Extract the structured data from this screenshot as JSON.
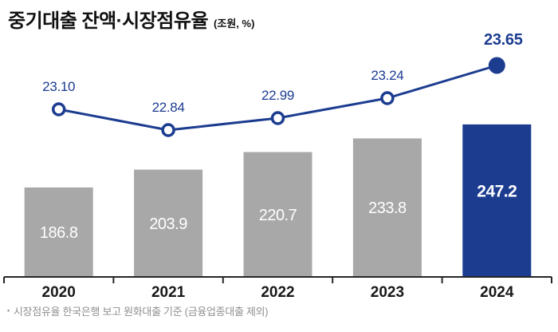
{
  "title": {
    "text": "중기대출 잔액·시장점유율",
    "unit": "(조원, %)"
  },
  "footnote": {
    "bullet": "▪",
    "text": "시장점유율 한국은행 보고 원화대출 기준 (금융업종대출 제외)"
  },
  "colors": {
    "navy": "#1c3c90",
    "gray_bar": "#a8a8a8",
    "bar_label": "#ffffff",
    "axis": "#262626",
    "year_label": "#191919",
    "footnote_gray": "#909090"
  },
  "chart_data": {
    "type": "bar+line combo",
    "categories": [
      "2020",
      "2021",
      "2022",
      "2023",
      "2024"
    ],
    "series": [
      {
        "name": "중기대출 잔액 (조원)",
        "type": "bar",
        "values": [
          186.8,
          203.9,
          220.7,
          233.8,
          247.2
        ],
        "labels": [
          "186.8",
          "203.9",
          "220.7",
          "233.8",
          "247.2"
        ]
      },
      {
        "name": "시장점유율 (%)",
        "type": "line",
        "values": [
          23.1,
          22.84,
          22.99,
          23.24,
          23.65
        ],
        "labels": [
          "23.10",
          "22.84",
          "22.99",
          "23.24",
          "23.65"
        ]
      }
    ],
    "highlight_index": 4,
    "highlight_category": "2024",
    "legend": "none",
    "grid": false,
    "value_labels": "shown",
    "bar_label_position": "inside-center",
    "line_label_position": "above-marker"
  }
}
